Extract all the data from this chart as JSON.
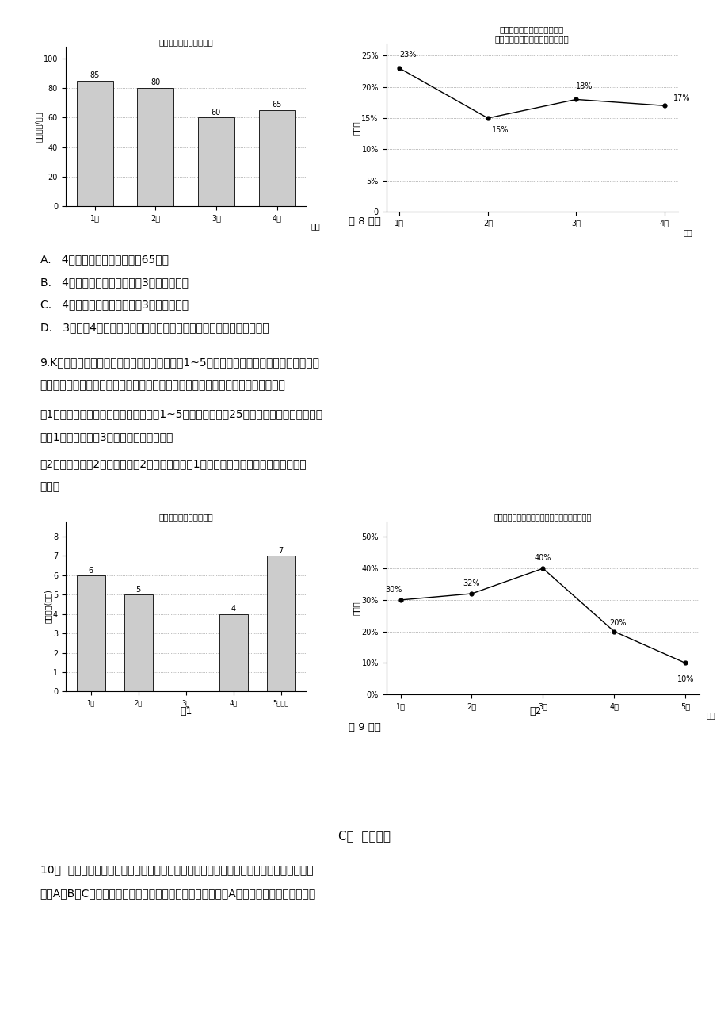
{
  "page_bg": "#ffffff",
  "chart8_bar_title": "各月手机销售总额统计图",
  "chart8_bar_ylabel": "销售总额/万元",
  "chart8_bar_months": [
    "1月",
    "2月",
    "3月",
    "4月"
  ],
  "chart8_bar_values": [
    85,
    80,
    60,
    65
  ],
  "chart8_bar_yticks": [
    0,
    20,
    40,
    60,
    80,
    100
  ],
  "chart8_line_title1": "某品牌手机销售额占该手机店",
  "chart8_line_title2": "当月手机销售总额的百分比统计图",
  "chart8_line_ylabel": "百分比",
  "chart8_line_months": [
    "1月",
    "2月",
    "3月",
    "4月"
  ],
  "chart8_line_values": [
    23,
    15,
    18,
    17
  ],
  "chart8_line_yticks": [
    0,
    5,
    10,
    15,
    20,
    25
  ],
  "chart8_line_ytick_labels": [
    "0",
    "5%",
    "10%",
    "15%",
    "20%",
    "25%"
  ],
  "caption8": "第 8 题图",
  "option_A": "A.   4月份某品牌手机销售额为65万元",
  "option_B": "B.   4月份某品牌手机销售额比3月份有所上升",
  "option_C": "C.   4月份某品牌手机销售额比3月份有所下降",
  "option_D": "D.   3月份与4月份的某品牌手机销售额无法比较，只能比较该店销售总额",
  "q9_text1": "9.K市某超市为了理解近期的销售状况，对今年1~5月份的销售额进行了记录，超市财务部",
  "q9_text2": "经理把收集到的记录数据绘制成如下记录图，请你根据下面的记录图解答下列问题：",
  "q9_sub1": "（1）来自超市财务部的报告表白，超市1~5月份的销售额为25万元．请你根据这一信息补",
  "q9_sub1b": "全图1．超市服装部3月份的销售额是多少？",
  "q9_sub2": "（2）小莉观测图2觉得，服装部2月份的销售额比1月份增长了，你批准她的见解吗？为",
  "q9_sub2b": "什么？",
  "chart9_bar_title": "超市各月销售总额统计图",
  "chart9_bar_ylabel": "销售总额(万元)",
  "chart9_bar_months": [
    "1月",
    "2月",
    "3月",
    "4月",
    "5月月份"
  ],
  "chart9_bar_values": [
    6,
    5,
    null,
    4,
    7
  ],
  "chart9_bar_yticks": [
    0,
    1,
    2,
    3,
    4,
    5,
    6,
    7,
    8
  ],
  "chart9_bar_label": "图1",
  "chart9_line_title": "服装部各月销售额占超市当月销售总额的百分比",
  "chart9_line_ylabel": "百分比",
  "chart9_line_months": [
    "1月",
    "2月",
    "3月",
    "4月",
    "5月"
  ],
  "chart9_line_values": [
    30,
    32,
    40,
    20,
    10
  ],
  "chart9_line_yticks": [
    0,
    10,
    20,
    30,
    40,
    50
  ],
  "chart9_line_ytick_labels": [
    "0%",
    "10%",
    "20%",
    "30%",
    "40%",
    "50%"
  ],
  "chart9_line_label": "图2",
  "caption9": "第 9 题图",
  "section_C": "C组  综合运用",
  "q10_text1": "10．  某环保小组为了理解世博园的游客在园区内购买瓶装饮料数量的状况，一天，她们分",
  "q10_text2": "别在A、B、C三个出口处对离开园区的游客进行调查，并将在A出口调查所得到的数据整顿"
}
